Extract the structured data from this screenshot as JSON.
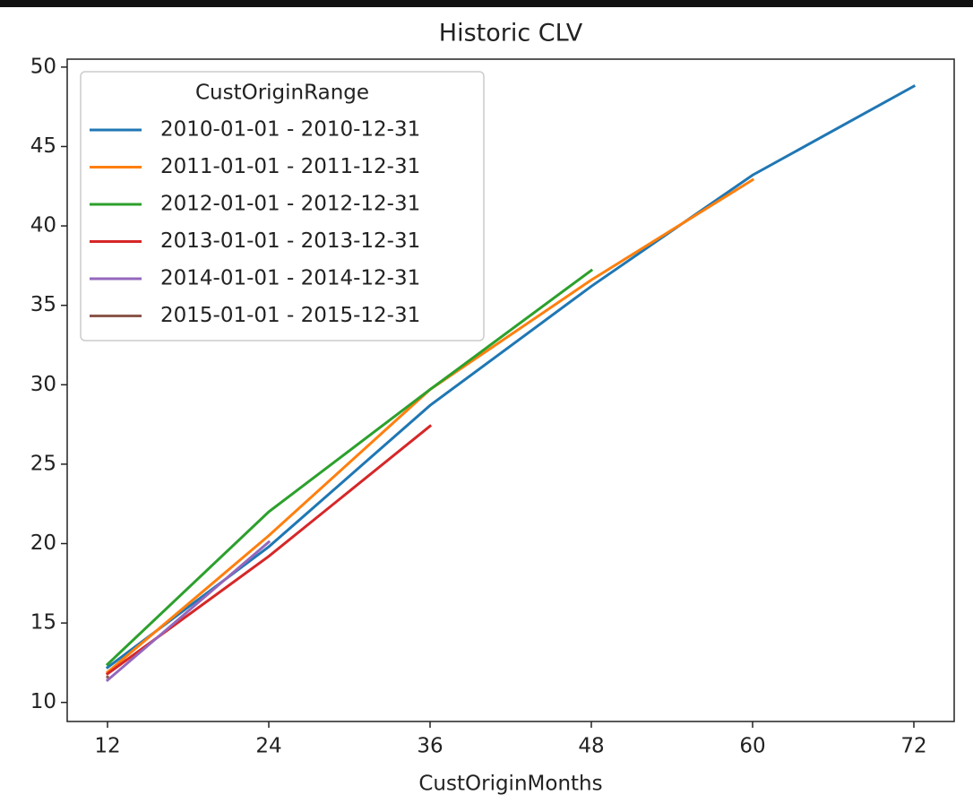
{
  "chart_data": {
    "type": "line",
    "title": "Historic CLV",
    "x_label": "CustOriginMonths",
    "legend_title": "CustOriginRange",
    "legend": "upper left",
    "x": [
      12,
      24,
      36,
      48,
      60,
      72
    ],
    "series": [
      {
        "name": "2010-01-01 - 2010-12-31",
        "color": "#1f77b4",
        "values": [
          12.2,
          19.8,
          28.7,
          36.2,
          43.2,
          48.8
        ]
      },
      {
        "name": "2011-01-01 - 2011-12-31",
        "color": "#ff7f0e",
        "values": [
          11.9,
          20.5,
          29.7,
          36.6,
          42.9,
          null
        ]
      },
      {
        "name": "2012-01-01 - 2012-12-31",
        "color": "#2ca02c",
        "values": [
          12.4,
          22.0,
          29.7,
          37.2,
          null,
          null
        ]
      },
      {
        "name": "2013-01-01 - 2013-12-31",
        "color": "#d62728",
        "values": [
          11.8,
          19.2,
          27.4,
          null,
          null,
          null
        ]
      },
      {
        "name": "2014-01-01 - 2014-12-31",
        "color": "#9467bd",
        "values": [
          11.4,
          20.1,
          null,
          null,
          null,
          null
        ]
      },
      {
        "name": "2015-01-01 - 2015-12-31",
        "color": "#8c564b",
        "values": [
          11.6,
          null,
          null,
          null,
          null,
          null
        ]
      }
    ],
    "xlim": [
      9,
      75
    ],
    "xticks": [
      12,
      24,
      36,
      48,
      60,
      72
    ],
    "ylim": [
      8.8,
      50.5
    ],
    "yticks": [
      10,
      15,
      20,
      25,
      30,
      35,
      40,
      45,
      50
    ]
  }
}
